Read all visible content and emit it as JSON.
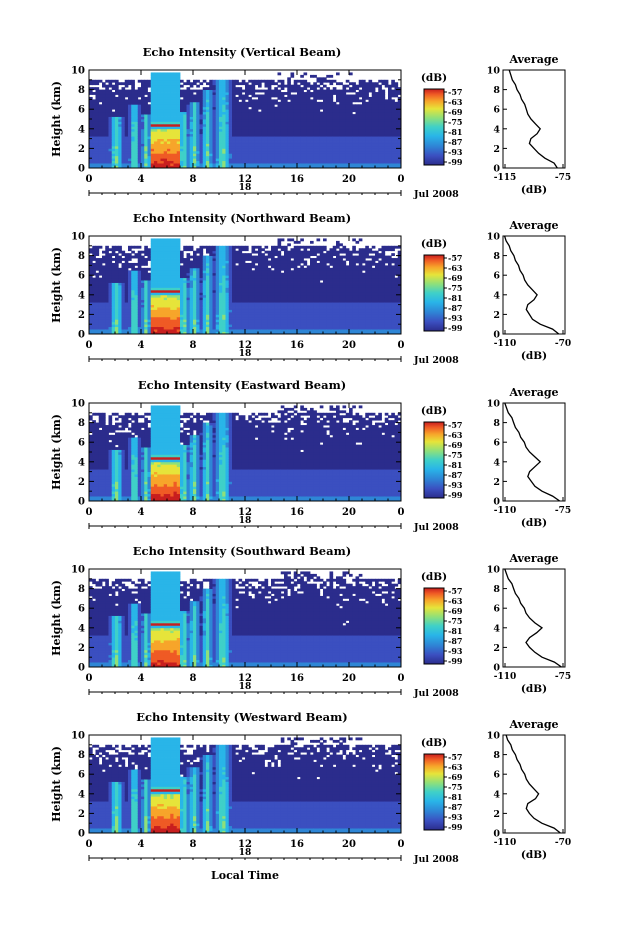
{
  "figure": {
    "xlabel_bottom": "Local Time",
    "date_label": "Jul 2008",
    "day_label": "18",
    "colorbar_unit": "(dB)",
    "colorbar_ticks": [
      "-57",
      "-63",
      "-69",
      "-75",
      "-81",
      "-87",
      "-93",
      "-99"
    ],
    "ylabel": "Height (km)",
    "y_ticks": [
      "0",
      "2",
      "4",
      "6",
      "8",
      "10"
    ],
    "x_ticks": [
      "0",
      "4",
      "8",
      "12",
      "16",
      "20",
      "0"
    ],
    "avg_title": "Average",
    "avg_xlabel": "(dB)",
    "colors": {
      "colormap": [
        "#2b2c8c",
        "#3b4fc0",
        "#2e86d6",
        "#29b5e8",
        "#3fd0c8",
        "#8fe07a",
        "#e6e43a",
        "#f7a52a",
        "#ef5a25",
        "#c81e1e"
      ],
      "background": "#ffffff"
    }
  },
  "chart_data": [
    {
      "type": "heatmap",
      "title": "Echo Intensity (Vertical Beam)",
      "ylabel": "Height (km)",
      "xlim": [
        0,
        24
      ],
      "ylim": [
        0,
        10
      ],
      "colorbar": {
        "unit": "(dB)",
        "range": [
          -99,
          -57
        ]
      },
      "profile": {
        "title": "Average",
        "xlabel": "(dB)",
        "xlim": [
          -115,
          -75
        ],
        "x_ticks": [
          "-115",
          "-75"
        ],
        "height": [
          0,
          0.5,
          1,
          1.5,
          2,
          2.5,
          3,
          3.5,
          4,
          4.5,
          5,
          5.5,
          6,
          6.5,
          7,
          7.5,
          8,
          8.5,
          9,
          9.5,
          10
        ],
        "db": [
          -80,
          -82,
          -88,
          -92,
          -95,
          -98,
          -97,
          -93,
          -91,
          -94,
          -97,
          -99,
          -100,
          -101,
          -103,
          -104,
          -106,
          -107,
          -109,
          -110,
          -111
        ]
      }
    },
    {
      "type": "heatmap",
      "title": "Echo Intensity (Northward Beam)",
      "ylabel": "Height (km)",
      "xlim": [
        0,
        24
      ],
      "ylim": [
        0,
        10
      ],
      "colorbar": {
        "unit": "(dB)",
        "range": [
          -99,
          -57
        ]
      },
      "profile": {
        "title": "Average",
        "xlabel": "(dB)",
        "xlim": [
          -110,
          -70
        ],
        "x_ticks": [
          "-110",
          "-70"
        ],
        "height": [
          0,
          0.5,
          1,
          1.5,
          2,
          2.5,
          3,
          3.5,
          4,
          4.5,
          5,
          5.5,
          6,
          6.5,
          7,
          7.5,
          8,
          8.5,
          9,
          9.5,
          10
        ],
        "db": [
          -74,
          -78,
          -86,
          -91,
          -93,
          -95,
          -94,
          -90,
          -88,
          -91,
          -94,
          -96,
          -97,
          -99,
          -100,
          -102,
          -103,
          -105,
          -106,
          -108,
          -109
        ]
      }
    },
    {
      "type": "heatmap",
      "title": "Echo Intensity (Eastward Beam)",
      "ylabel": "Height (km)",
      "xlim": [
        0,
        24
      ],
      "ylim": [
        0,
        10
      ],
      "colorbar": {
        "unit": "(dB)",
        "range": [
          -99,
          -57
        ]
      },
      "profile": {
        "title": "Average",
        "xlabel": "(dB)",
        "xlim": [
          -110,
          -75
        ],
        "x_ticks": [
          "-110",
          "-75"
        ],
        "height": [
          0,
          0.5,
          1,
          1.5,
          2,
          2.5,
          3,
          3.5,
          4,
          4.5,
          5,
          5.5,
          6,
          6.5,
          7,
          7.5,
          8,
          8.5,
          9,
          9.5,
          10
        ],
        "db": [
          -78,
          -82,
          -88,
          -92,
          -94,
          -96,
          -95,
          -92,
          -89,
          -92,
          -95,
          -97,
          -98,
          -100,
          -101,
          -103,
          -104,
          -105,
          -107,
          -108,
          -109
        ]
      }
    },
    {
      "type": "heatmap",
      "title": "Echo Intensity (Southward Beam)",
      "ylabel": "Height (km)",
      "xlim": [
        0,
        24
      ],
      "ylim": [
        0,
        10
      ],
      "colorbar": {
        "unit": "(dB)",
        "range": [
          -99,
          -57
        ]
      },
      "profile": {
        "title": "Average",
        "xlabel": "(dB)",
        "xlim": [
          -110,
          -75
        ],
        "x_ticks": [
          "-110",
          "-75"
        ],
        "height": [
          0,
          0.5,
          1,
          1.5,
          2,
          2.5,
          3,
          3.5,
          4,
          4.5,
          5,
          5.5,
          6,
          6.5,
          7,
          7.5,
          8,
          8.5,
          9,
          9.5,
          10
        ],
        "db": [
          -77,
          -81,
          -88,
          -92,
          -95,
          -97,
          -95,
          -91,
          -88,
          -92,
          -95,
          -97,
          -98,
          -100,
          -101,
          -103,
          -104,
          -105,
          -107,
          -108,
          -109
        ]
      }
    },
    {
      "type": "heatmap",
      "title": "Echo Intensity (Westward Beam)",
      "ylabel": "Height (km)",
      "xlim": [
        0,
        24
      ],
      "ylim": [
        0,
        10
      ],
      "colorbar": {
        "unit": "(dB)",
        "range": [
          -99,
          -57
        ]
      },
      "profile": {
        "title": "Average",
        "xlabel": "(dB)",
        "xlim": [
          -110,
          -70
        ],
        "x_ticks": [
          "-110",
          "-70"
        ],
        "height": [
          0,
          0.5,
          1,
          1.5,
          2,
          2.5,
          3,
          3.5,
          4,
          4.5,
          5,
          5.5,
          6,
          6.5,
          7,
          7.5,
          8,
          8.5,
          9,
          9.5,
          10
        ],
        "db": [
          -73,
          -77,
          -85,
          -90,
          -93,
          -95,
          -94,
          -89,
          -87,
          -90,
          -93,
          -95,
          -96,
          -98,
          -99,
          -101,
          -102,
          -104,
          -105,
          -107,
          -108
        ]
      }
    }
  ]
}
